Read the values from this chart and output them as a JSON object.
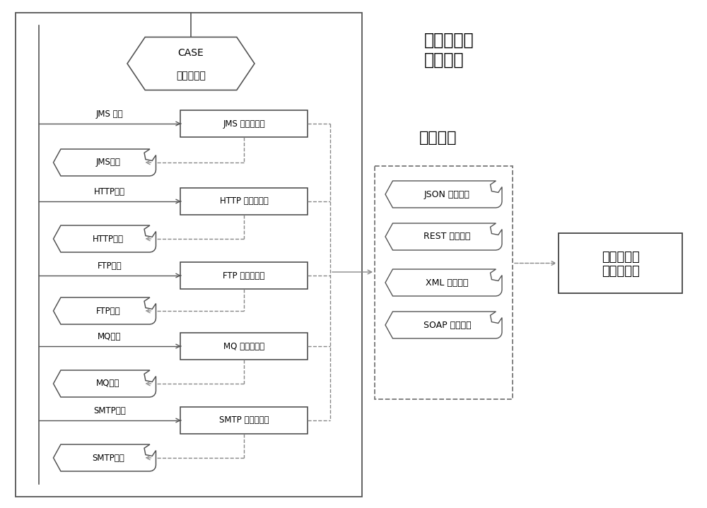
{
  "bg_color": "#ffffff",
  "title_module1": "应用层协议\n解析模块",
  "title_module2": "输入队列",
  "title_module3": "接收端语义\n预处理模块",
  "case_label": "CASE\n应用协议：",
  "protocols": [
    "JMS 协议",
    "HTTP协议",
    "FTP协议",
    "MQ协议",
    "SMTP协议"
  ],
  "sessions": [
    "JMS会话",
    "HTTP会话",
    "FTP会话",
    "MQ会话",
    "SMTP会话"
  ],
  "proxies": [
    "JMS 代理子模块",
    "HTTP 代理子模块",
    "FTP 代理子模块",
    "MQ 代理子模块",
    "SMTP 代理子模块"
  ],
  "queues": [
    "JSON 消息队列",
    "REST 消息队列",
    "XML 消息队列",
    "SOAP 消息队列"
  ],
  "line_color": "#555555",
  "dashed_color": "#888888",
  "font_size": 9,
  "font_size_large": 14,
  "font_size_title": 16
}
